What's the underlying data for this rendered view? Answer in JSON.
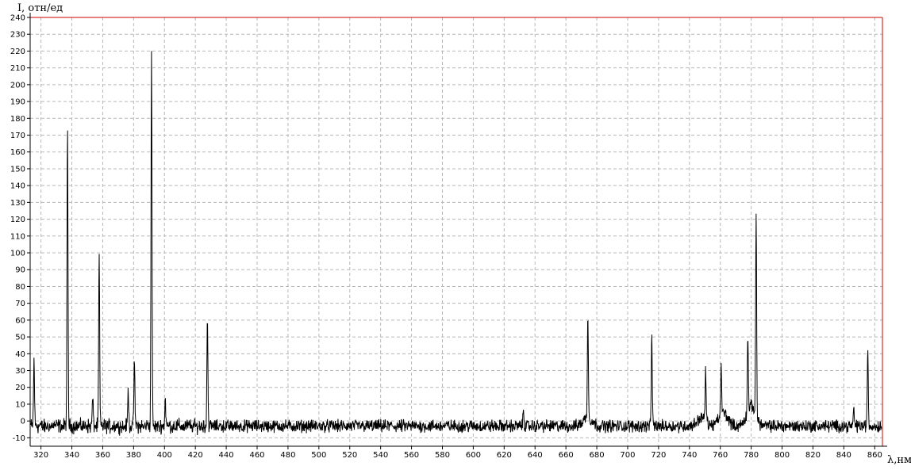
{
  "chart_data": {
    "type": "line",
    "title": "",
    "ylabel": "I, отн/ед",
    "xlabel": "λ,нм",
    "xlim": [
      313,
      865
    ],
    "ylim": [
      -15,
      240
    ],
    "x_ticks": [
      320,
      340,
      360,
      380,
      400,
      420,
      440,
      460,
      480,
      500,
      520,
      540,
      560,
      580,
      600,
      620,
      640,
      660,
      680,
      700,
      720,
      740,
      760,
      780,
      800,
      820,
      840,
      860
    ],
    "y_ticks": [
      -10,
      0,
      10,
      20,
      30,
      40,
      50,
      60,
      70,
      80,
      90,
      100,
      110,
      120,
      130,
      140,
      150,
      160,
      170,
      180,
      190,
      200,
      210,
      220,
      230,
      240
    ],
    "x_tick_labels": [
      "320",
      "340",
      "360",
      "380",
      "400",
      "420",
      "440",
      "460",
      "480",
      "500",
      "520",
      "540",
      "560",
      "580",
      "600",
      "620",
      "640",
      "660",
      "680",
      "700",
      "720",
      "740",
      "760",
      "780",
      "800",
      "820",
      "840",
      "860"
    ],
    "y_tick_labels": [
      "-10",
      "0",
      "10",
      "20",
      "30",
      "40",
      "50",
      "60",
      "70",
      "80",
      "90",
      "100",
      "110",
      "120",
      "130",
      "140",
      "150",
      "160",
      "170",
      "180",
      "190",
      "200",
      "210",
      "220",
      "230",
      "240"
    ],
    "grid": true,
    "baseline": -3,
    "peaks": [
      {
        "x": 315.5,
        "y": 36
      },
      {
        "x": 337.2,
        "y": 172
      },
      {
        "x": 353.5,
        "y": 14
      },
      {
        "x": 357.7,
        "y": 99
      },
      {
        "x": 376.5,
        "y": 19
      },
      {
        "x": 380.5,
        "y": 37
      },
      {
        "x": 391.6,
        "y": 219
      },
      {
        "x": 400.5,
        "y": 13
      },
      {
        "x": 427.8,
        "y": 61
      },
      {
        "x": 632.5,
        "y": 7
      },
      {
        "x": 674.2,
        "y": 59
      },
      {
        "x": 715.6,
        "y": 53
      },
      {
        "x": 750.5,
        "y": 27
      },
      {
        "x": 760.5,
        "y": 25
      },
      {
        "x": 777.8,
        "y": 43
      },
      {
        "x": 783.2,
        "y": 118
      },
      {
        "x": 846.5,
        "y": 7
      },
      {
        "x": 855.5,
        "y": 43
      }
    ],
    "broad_bands": [
      {
        "x": 674,
        "y": 5
      },
      {
        "x": 748,
        "y": 5
      },
      {
        "x": 762,
        "y": 8
      },
      {
        "x": 780,
        "y": 12
      }
    ],
    "series": [
      {
        "color": "#000000"
      }
    ]
  }
}
